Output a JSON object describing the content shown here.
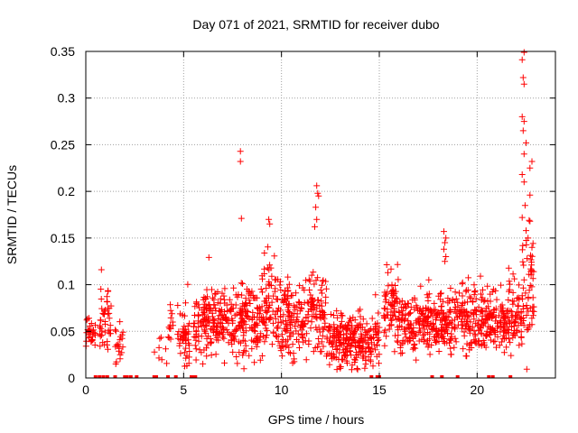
{
  "chart_data": {
    "type": "scatter",
    "title": "Day 071 of 2021, SRMTID for receiver dubo",
    "xlabel": "GPS time / hours",
    "ylabel": "SRMTID / TECUs",
    "xlim": [
      0,
      24
    ],
    "ylim": [
      0,
      0.35
    ],
    "x_ticks": [
      0,
      5,
      10,
      15,
      20
    ],
    "x_tick_labels": [
      "0",
      "5",
      "10",
      "15",
      "20"
    ],
    "y_ticks": [
      0,
      0.05,
      0.1,
      0.15,
      0.2,
      0.25,
      0.3,
      0.35
    ],
    "y_tick_labels": [
      "0",
      "0.05",
      "0.1",
      "0.15",
      "0.2",
      "0.25",
      "0.3",
      "0.35"
    ],
    "grid": true,
    "marker": "plus",
    "color": "#ff0000",
    "series": [
      {
        "name": "SRMTID",
        "segments": [
          {
            "x0": 0.0,
            "x1": 0.5,
            "mean": 0.048,
            "sd": 0.009,
            "density": 60
          },
          {
            "x0": 0.7,
            "x1": 1.3,
            "mean": 0.062,
            "sd": 0.018,
            "density": 70
          },
          {
            "x0": 1.5,
            "x1": 1.9,
            "mean": 0.035,
            "sd": 0.012,
            "density": 50
          },
          {
            "x0": 3.5,
            "x1": 4.2,
            "mean": 0.03,
            "sd": 0.008,
            "density": 12
          },
          {
            "x0": 4.2,
            "x1": 4.7,
            "mean": 0.05,
            "sd": 0.015,
            "density": 30
          },
          {
            "x0": 4.7,
            "x1": 5.3,
            "mean": 0.042,
            "sd": 0.015,
            "density": 80
          },
          {
            "x0": 5.5,
            "x1": 7.5,
            "mean": 0.058,
            "sd": 0.017,
            "density": 90
          },
          {
            "x0": 7.5,
            "x1": 9.0,
            "mean": 0.058,
            "sd": 0.02,
            "density": 90
          },
          {
            "x0": 9.0,
            "x1": 9.8,
            "mean": 0.078,
            "sd": 0.022,
            "density": 90
          },
          {
            "x0": 9.8,
            "x1": 11.5,
            "mean": 0.064,
            "sd": 0.02,
            "density": 90
          },
          {
            "x0": 11.5,
            "x1": 12.3,
            "mean": 0.068,
            "sd": 0.022,
            "density": 90
          },
          {
            "x0": 12.3,
            "x1": 15.0,
            "mean": 0.04,
            "sd": 0.014,
            "density": 95
          },
          {
            "x0": 15.2,
            "x1": 16.0,
            "mean": 0.072,
            "sd": 0.02,
            "density": 90
          },
          {
            "x0": 16.0,
            "x1": 18.2,
            "mean": 0.058,
            "sd": 0.016,
            "density": 90
          },
          {
            "x0": 18.2,
            "x1": 18.6,
            "mean": 0.06,
            "sd": 0.015,
            "density": 90
          },
          {
            "x0": 18.6,
            "x1": 20.0,
            "mean": 0.063,
            "sd": 0.018,
            "density": 90
          },
          {
            "x0": 20.0,
            "x1": 21.6,
            "mean": 0.06,
            "sd": 0.016,
            "density": 90
          },
          {
            "x0": 21.6,
            "x1": 22.3,
            "mean": 0.07,
            "sd": 0.02,
            "density": 90
          },
          {
            "x0": 22.3,
            "x1": 22.9,
            "mean": 0.095,
            "sd": 0.03,
            "density": 90
          }
        ],
        "highlights": [
          {
            "x": 0.8,
            "y": 0.116
          },
          {
            "x": 7.9,
            "y": 0.243
          },
          {
            "x": 7.9,
            "y": 0.232
          },
          {
            "x": 7.95,
            "y": 0.171
          },
          {
            "x": 9.35,
            "y": 0.17
          },
          {
            "x": 9.4,
            "y": 0.165
          },
          {
            "x": 11.8,
            "y": 0.206
          },
          {
            "x": 11.85,
            "y": 0.198
          },
          {
            "x": 11.9,
            "y": 0.195
          },
          {
            "x": 11.75,
            "y": 0.183
          },
          {
            "x": 11.8,
            "y": 0.17
          },
          {
            "x": 11.7,
            "y": 0.162
          },
          {
            "x": 18.3,
            "y": 0.157
          },
          {
            "x": 18.4,
            "y": 0.15
          },
          {
            "x": 18.35,
            "y": 0.145
          },
          {
            "x": 18.3,
            "y": 0.138
          },
          {
            "x": 18.4,
            "y": 0.13
          },
          {
            "x": 18.35,
            "y": 0.125
          },
          {
            "x": 22.4,
            "y": 0.349
          },
          {
            "x": 22.3,
            "y": 0.341
          },
          {
            "x": 22.35,
            "y": 0.322
          },
          {
            "x": 22.4,
            "y": 0.315
          },
          {
            "x": 22.3,
            "y": 0.28
          },
          {
            "x": 22.4,
            "y": 0.275
          },
          {
            "x": 22.35,
            "y": 0.265
          },
          {
            "x": 22.5,
            "y": 0.252
          },
          {
            "x": 22.4,
            "y": 0.24
          },
          {
            "x": 22.8,
            "y": 0.232
          },
          {
            "x": 22.7,
            "y": 0.225
          },
          {
            "x": 22.3,
            "y": 0.218
          },
          {
            "x": 22.4,
            "y": 0.21
          },
          {
            "x": 22.7,
            "y": 0.196
          },
          {
            "x": 22.45,
            "y": 0.185
          },
          {
            "x": 22.3,
            "y": 0.172
          },
          {
            "x": 22.7,
            "y": 0.168
          },
          {
            "x": 22.5,
            "y": 0.158
          },
          {
            "x": 22.6,
            "y": 0.15
          },
          {
            "x": 22.8,
            "y": 0.14
          },
          {
            "x": 22.55,
            "y": 0.128
          }
        ],
        "zero_points": [
          0.5,
          0.7,
          0.9,
          1.1,
          1.5,
          2.0,
          2.1,
          2.3,
          2.6,
          3.5,
          3.6,
          4.2,
          4.6,
          5.4,
          5.5,
          5.6,
          14.6,
          14.9,
          15.0,
          17.7,
          18.2,
          19.0,
          20.6,
          20.8,
          21.7
        ]
      }
    ]
  }
}
